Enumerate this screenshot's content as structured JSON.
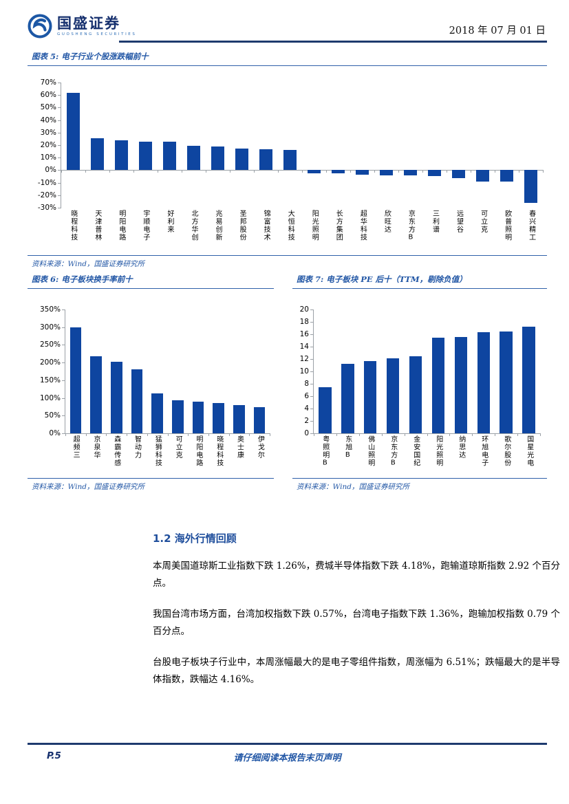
{
  "header": {
    "brand": "国盛证券",
    "brand_sub": "GUOSHENG SECURITIES",
    "date": "2018 年 07 月 01 日"
  },
  "figures": [
    {
      "title": "图表 5: 电子行业个股涨跌幅前十",
      "source": "资料来源：Wind，国盛证券研究所"
    },
    {
      "title": "图表 6: 电子板块换手率前十",
      "source": "资料来源：Wind，国盛证券研究所"
    },
    {
      "title": "图表 7: 电子板块 PE 后十（TTM，剔除负值）",
      "source": "资料来源：Wind，国盛证券研究所"
    }
  ],
  "chart_data": [
    {
      "type": "bar",
      "title": "电子行业个股涨跌幅前十",
      "categories": [
        "晓程科技",
        "天津普林",
        "明阳电路",
        "宇顺电子",
        "好利来",
        "北方华创",
        "兆易创新",
        "圣邦股份",
        "锦富技术",
        "大恒科技",
        "阳光照明",
        "长方集团",
        "超华科技",
        "欣旺达",
        "京东方B",
        "三利谱",
        "远望谷",
        "可立克",
        "欧普照明",
        "春兴精工"
      ],
      "values": [
        62,
        25.5,
        24,
        23,
        22.5,
        19.5,
        19,
        17,
        16.8,
        16,
        -2.5,
        -2.6,
        -3.6,
        -4.2,
        -4.3,
        -4.7,
        -6.6,
        -8.9,
        -9.2,
        -26
      ],
      "ylim": [
        -30,
        70
      ],
      "ytick_step": 10,
      "ytick_suffix": "%",
      "xlabel": "",
      "ylabel": "",
      "grid": false,
      "legend": "none"
    },
    {
      "type": "bar",
      "title": "电子板块换手率前十",
      "categories": [
        "超频三",
        "京泉华",
        "森霸传感",
        "智动力",
        "猛狮科技",
        "可立克",
        "明阳电路",
        "晓程科技",
        "奥士康",
        "伊戈尔"
      ],
      "values": [
        300,
        217,
        203,
        181,
        112,
        94,
        90,
        86,
        79,
        74
      ],
      "ylim": [
        0,
        350
      ],
      "ytick_step": 50,
      "ytick_suffix": "%",
      "xlabel": "",
      "ylabel": "",
      "grid": false,
      "legend": "none"
    },
    {
      "type": "bar",
      "title": "电子板块 PE 后十（TTM，剔除负值）",
      "categories": [
        "粤照明B",
        "东旭B",
        "佛山照明",
        "京东方B",
        "金安国纪",
        "阳光照明",
        "纳思达",
        "环旭电子",
        "歌尔股份",
        "国星光电"
      ],
      "values": [
        7.4,
        11.2,
        11.7,
        12.1,
        12.5,
        15.5,
        15.6,
        16.3,
        16.5,
        17.2
      ],
      "ylim": [
        0,
        20
      ],
      "ytick_step": 2,
      "ytick_suffix": "",
      "xlabel": "",
      "ylabel": "",
      "grid": false,
      "legend": "none"
    }
  ],
  "section": {
    "heading": "1.2 海外行情回顾",
    "paragraphs": [
      "本周美国道琼斯工业指数下跌 1.26%，费城半导体指数下跌 4.18%，跑输道琼斯指数 2.92 个百分点。",
      "我国台湾市场方面，台湾加权指数下跌 0.57%，台湾电子指数下跌 1.36%，跑输加权指数 0.79 个百分点。",
      "台股电子板块子行业中，本周涨幅最大的是电子零组件指数，周涨幅为 6.51%；跌幅最大的是半导体指数，跌幅达 4.16%。"
    ]
  },
  "footer": {
    "page": "P.5",
    "disclaimer": "请仔细阅读本报告末页声明"
  },
  "colors": {
    "bar": "#0e45a0",
    "accent_blue": "#2156a5",
    "navy_rule": "#1e3a6e",
    "heading_blue": "#1f4e9c",
    "axis_gray": "#9aa0a6"
  }
}
